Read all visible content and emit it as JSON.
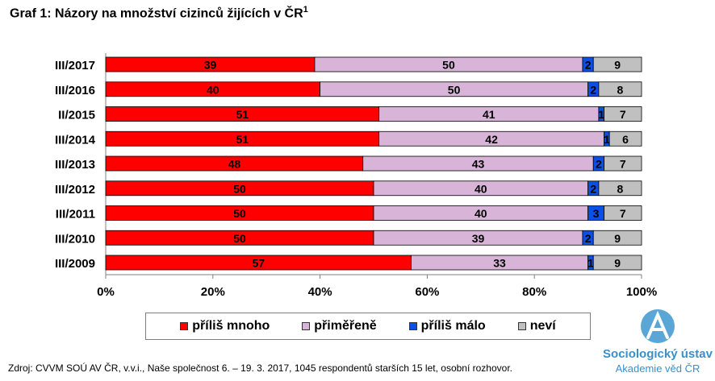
{
  "title": "Graf 1: Názory na množství cizinců žijících v ČR",
  "title_sup": "1",
  "chart_data": {
    "type": "bar",
    "orientation": "horizontal",
    "stacked": true,
    "percent_stacked": true,
    "categories": [
      "III/2017",
      "III/2016",
      "II/2015",
      "III/2014",
      "III/2013",
      "III/2012",
      "III/2011",
      "III/2010",
      "III/2009"
    ],
    "series": [
      {
        "name": "příliš mnoho",
        "color": "#ff0000",
        "values": [
          39,
          40,
          51,
          51,
          48,
          50,
          50,
          50,
          57
        ]
      },
      {
        "name": "přiměřeně",
        "color": "#d8b4d8",
        "values": [
          50,
          50,
          41,
          42,
          43,
          40,
          40,
          39,
          33
        ]
      },
      {
        "name": "příliš málo",
        "color": "#0a50e6",
        "values": [
          2,
          2,
          1,
          1,
          2,
          2,
          3,
          2,
          1
        ]
      },
      {
        "name": "neví",
        "color": "#c0c0c0",
        "values": [
          9,
          8,
          7,
          6,
          7,
          8,
          7,
          9,
          9
        ]
      }
    ],
    "xlim": [
      0,
      100
    ],
    "xticks": [
      "0%",
      "20%",
      "40%",
      "60%",
      "80%",
      "100%"
    ],
    "legend_position": "bottom"
  },
  "source": "Zdroj: CVVM SOÚ AV ČR, v.v.i., Naše společnost 6. – 19. 3. 2017, 1045 respondentů starších 15 let, osobní rozhovor.",
  "logo": {
    "name": "Sociologický ústav",
    "subtitle": "Akademie věd ČR",
    "color": "#3a8fc7"
  }
}
